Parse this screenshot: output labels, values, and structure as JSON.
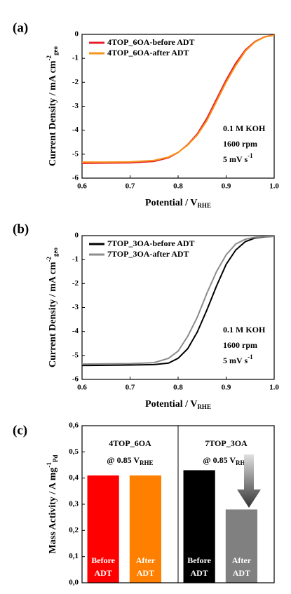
{
  "chart_data": [
    {
      "type": "line",
      "label": "(a)",
      "xlabel": {
        "text": "Potential / V",
        "sub": "RHE"
      },
      "ylabel": {
        "text": "Current Density / mA cm",
        "sup": "-2",
        "sub": "geo"
      },
      "xlim": [
        0.6,
        1
      ],
      "xticks": [
        0.6,
        0.7,
        0.8,
        0.9,
        {
          "value": 1,
          "label": "1.0"
        }
      ],
      "ylim": [
        -6,
        0
      ],
      "yticks": [
        -6,
        -5,
        -4,
        -3,
        -2,
        -1,
        0
      ],
      "legend": "upper left",
      "annotations": [
        {
          "text": "0.1 M KOH"
        },
        {
          "text": "1600 rpm"
        },
        {
          "text": "5 mV s",
          "sup": "-1"
        }
      ],
      "x": [
        0.6,
        0.65,
        0.7,
        0.75,
        0.78,
        0.8,
        0.82,
        0.84,
        0.86,
        0.88,
        0.9,
        0.92,
        0.94,
        0.96,
        0.98,
        1
      ],
      "series": [
        {
          "name": "4TOP_6OA-before ADT",
          "color": "#e5202a",
          "values": [
            -5.38,
            -5.37,
            -5.36,
            -5.3,
            -5.15,
            -4.93,
            -4.6,
            -4.15,
            -3.5,
            -2.7,
            -1.9,
            -1.2,
            -0.65,
            -0.3,
            -0.1,
            -0.03
          ]
        },
        {
          "name": "4TOP_6OA-after ADT",
          "color": "#f7941d",
          "values": [
            -5.33,
            -5.33,
            -5.32,
            -5.26,
            -5.12,
            -4.92,
            -4.62,
            -4.2,
            -3.6,
            -2.8,
            -2.0,
            -1.3,
            -0.7,
            -0.32,
            -0.11,
            -0.04
          ]
        }
      ]
    },
    {
      "type": "line",
      "label": "(b)",
      "xlabel": {
        "text": "Potential / V",
        "sub": "RHE"
      },
      "ylabel": {
        "text": "Current Density / mA cm",
        "sup": "-2",
        "sub": "geo"
      },
      "xlim": [
        0.6,
        1
      ],
      "xticks": [
        0.6,
        0.7,
        0.8,
        0.9,
        {
          "value": 1,
          "label": "1.0"
        }
      ],
      "ylim": [
        -6,
        0
      ],
      "yticks": [
        -6,
        -5,
        -4,
        -3,
        -2,
        -1,
        0
      ],
      "legend": "upper left",
      "annotations": [
        {
          "text": "0.1 M KOH"
        },
        {
          "text": "1600 rpm"
        },
        {
          "text": "5 mV s",
          "sup": "-1"
        }
      ],
      "x": [
        0.6,
        0.65,
        0.7,
        0.75,
        0.78,
        0.8,
        0.82,
        0.84,
        0.86,
        0.88,
        0.9,
        0.92,
        0.94,
        0.96,
        0.98,
        1
      ],
      "series": [
        {
          "name": "7TOP_3OA-before ADT",
          "color": "#000000",
          "values": [
            -5.42,
            -5.41,
            -5.4,
            -5.38,
            -5.32,
            -5.12,
            -4.72,
            -4.02,
            -3.1,
            -2.1,
            -1.2,
            -0.6,
            -0.25,
            -0.1,
            -0.05,
            -0.03
          ]
        },
        {
          "name": "7TOP_3OA-after ADT",
          "color": "#8c8c8c",
          "values": [
            -5.36,
            -5.35,
            -5.34,
            -5.3,
            -5.12,
            -4.82,
            -4.2,
            -3.4,
            -2.4,
            -1.5,
            -0.8,
            -0.35,
            -0.15,
            -0.07,
            -0.04,
            -0.03
          ]
        }
      ]
    },
    {
      "type": "bar",
      "label": "(c)",
      "ylabel": {
        "text": "Mass Activity / A mg",
        "sup": "-1",
        "sub": "Pd"
      },
      "ylim": [
        0,
        0.6
      ],
      "yticks": [
        {
          "value": 0,
          "label": "0,0"
        },
        {
          "value": 0.1,
          "label": "0,1"
        },
        {
          "value": 0.2,
          "label": "0,2"
        },
        {
          "value": 0.3,
          "label": "0,3"
        },
        {
          "value": 0.4,
          "label": "0,4"
        },
        {
          "value": 0.5,
          "label": "0,5"
        },
        {
          "value": 0.6,
          "label": "0,6"
        }
      ],
      "groups": [
        {
          "name": "4TOP_6OA",
          "condition": {
            "text": "@ 0.85 V",
            "sub": "RHE"
          }
        },
        {
          "name": "7TOP_3OA",
          "condition": {
            "text": "@ 0.85 V",
            "sub": "RHE"
          }
        }
      ],
      "categories": [
        [
          "Before",
          "ADT"
        ],
        [
          "After",
          "ADT"
        ],
        [
          "Before",
          "ADT"
        ],
        [
          "After",
          "ADT"
        ]
      ],
      "values": [
        0.41,
        0.41,
        0.43,
        0.28
      ],
      "colors": [
        "#ff0000",
        "#ff8000",
        "#000000",
        "#808080"
      ]
    }
  ]
}
